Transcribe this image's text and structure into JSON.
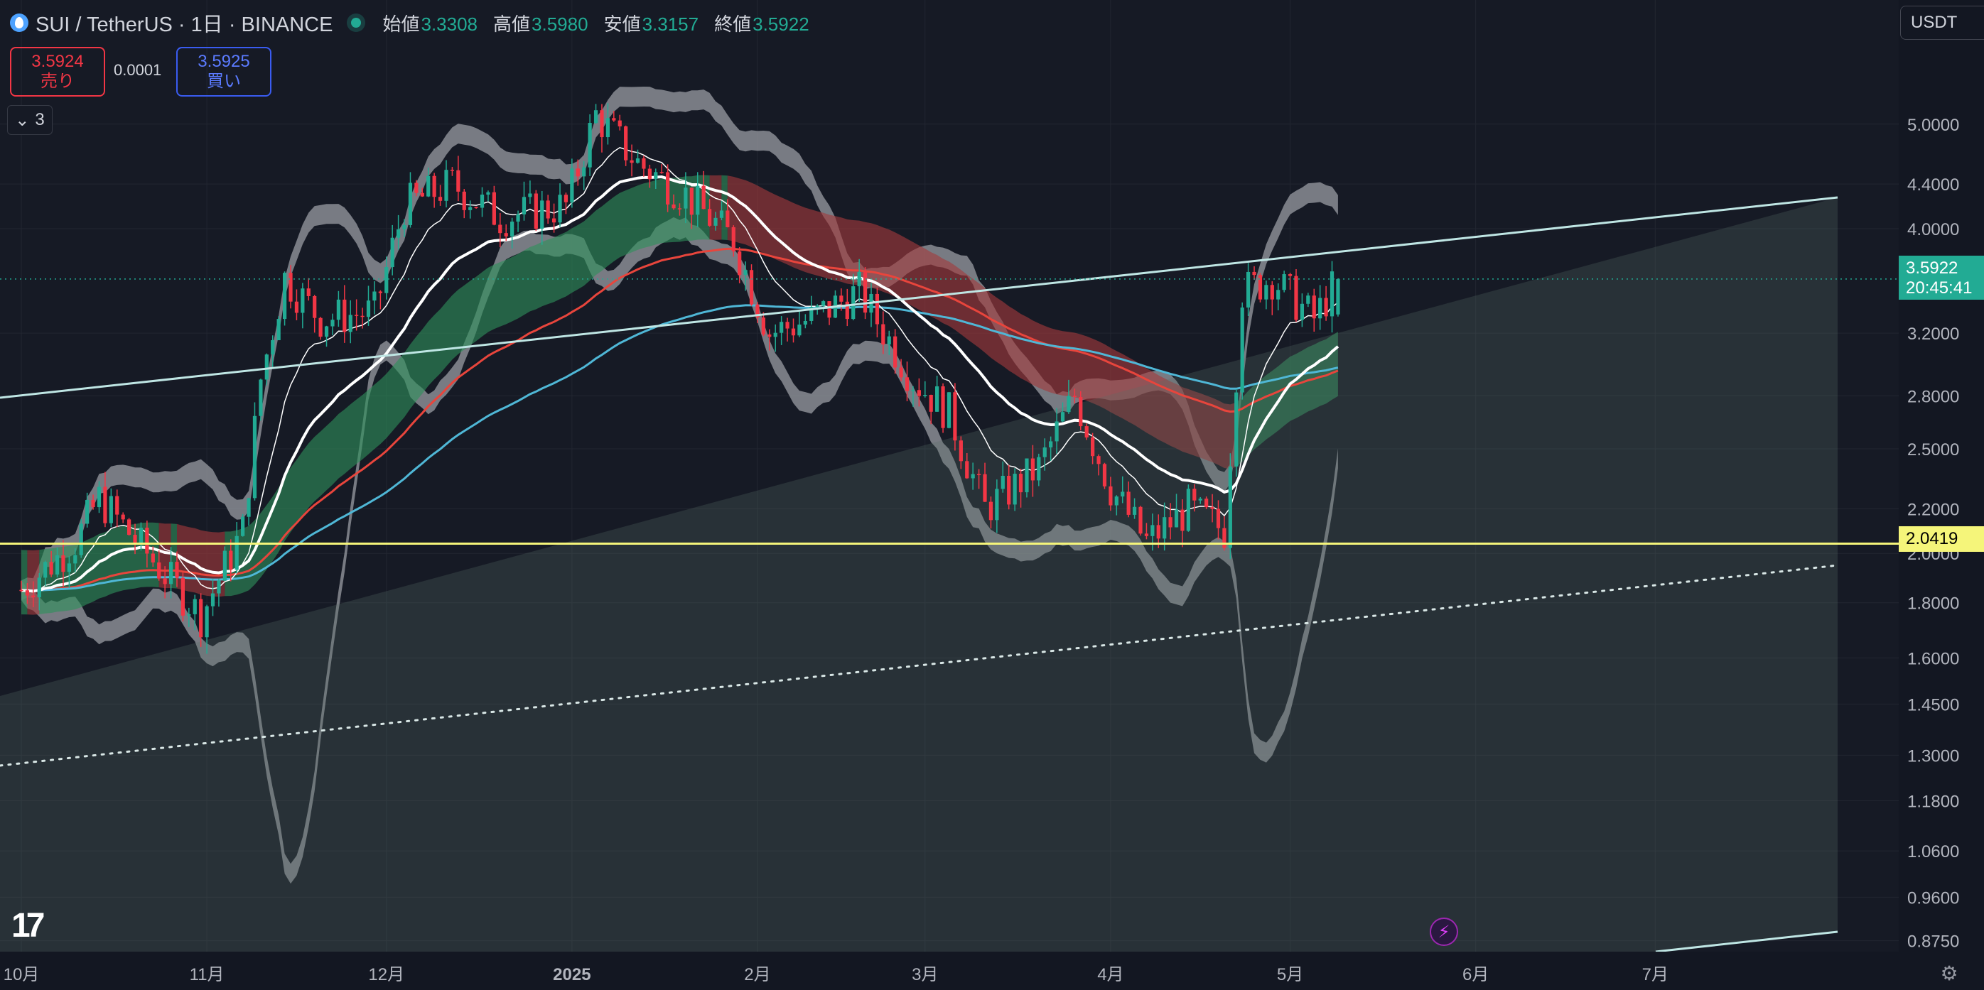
{
  "header": {
    "symbol": "SUI / TetherUS · 1日 · BINANCE",
    "ohlc": [
      {
        "label": "始値",
        "value": "3.3308"
      },
      {
        "label": "高値",
        "value": "3.5980"
      },
      {
        "label": "安値",
        "value": "3.3157"
      },
      {
        "label": "終値",
        "value": "3.5922"
      }
    ]
  },
  "trade": {
    "sell_price": "3.5924",
    "sell_label": "売り",
    "spread": "0.0001",
    "buy_price": "3.5925",
    "buy_label": "買い"
  },
  "indicators_toggle": {
    "count": "3"
  },
  "currency": "USDT",
  "price_axis": {
    "ticks": [
      "5.0000",
      "4.4000",
      "4.0000",
      "3.2000",
      "2.8000",
      "2.5000",
      "2.2000",
      "2.0000",
      "1.8000",
      "1.6000",
      "1.4500",
      "1.3000",
      "1.1800",
      "1.0600",
      "0.9600",
      "0.8750"
    ],
    "current_price": "3.5922",
    "countdown": "20:45:41",
    "horizontal_line_price": "2.0419"
  },
  "time_axis": {
    "labels": [
      "10月",
      "11月",
      "12月",
      "2025",
      "2月",
      "3月",
      "4月",
      "5月",
      "6月",
      "7月"
    ]
  },
  "colors": {
    "background": "#161a25",
    "up": "#22ab94",
    "down": "#f23645",
    "ema_red": "#e8453c",
    "ema_blue": "#4fb7d6",
    "trend_line": "#bfe6e4",
    "horizontal_line": "#f5f57a"
  },
  "chart_data": {
    "type": "candlestick",
    "title": "SUI / TetherUS · 1日 · BINANCE",
    "scale": "log",
    "ylim": [
      0.86,
      5.6
    ],
    "xrange": [
      "2024-10-01",
      "2025-07-31"
    ],
    "last_candle": {
      "open": 3.3308,
      "high": 3.598,
      "low": 3.3157,
      "close": 3.5922
    },
    "close_path_approx": [
      {
        "x": "2024-10-01",
        "close": 1.85
      },
      {
        "x": "2024-10-10",
        "close": 2.05
      },
      {
        "x": "2024-10-14",
        "close": 2.25
      },
      {
        "x": "2024-10-22",
        "close": 2.0
      },
      {
        "x": "2024-10-31",
        "close": 1.75
      },
      {
        "x": "2024-11-07",
        "close": 2.1
      },
      {
        "x": "2024-11-10",
        "close": 2.9
      },
      {
        "x": "2024-11-14",
        "close": 3.6
      },
      {
        "x": "2024-11-20",
        "close": 3.3
      },
      {
        "x": "2024-11-29",
        "close": 3.35
      },
      {
        "x": "2024-12-04",
        "close": 4.2
      },
      {
        "x": "2024-12-12",
        "close": 4.4
      },
      {
        "x": "2024-12-20",
        "close": 4.1
      },
      {
        "x": "2024-12-31",
        "close": 4.2
      },
      {
        "x": "2025-01-05",
        "close": 5.1
      },
      {
        "x": "2025-01-12",
        "close": 4.6
      },
      {
        "x": "2025-01-20",
        "close": 4.3
      },
      {
        "x": "2025-01-28",
        "close": 3.9
      },
      {
        "x": "2025-02-03",
        "close": 3.2
      },
      {
        "x": "2025-02-10",
        "close": 3.3
      },
      {
        "x": "2025-02-18",
        "close": 3.5
      },
      {
        "x": "2025-02-27",
        "close": 2.9
      },
      {
        "x": "2025-03-05",
        "close": 2.7
      },
      {
        "x": "2025-03-11",
        "close": 2.2
      },
      {
        "x": "2025-03-20",
        "close": 2.4
      },
      {
        "x": "2025-03-26",
        "close": 2.8
      },
      {
        "x": "2025-04-01",
        "close": 2.3
      },
      {
        "x": "2025-04-07",
        "close": 2.05
      },
      {
        "x": "2025-04-14",
        "close": 2.2
      },
      {
        "x": "2025-04-20",
        "close": 2.1
      },
      {
        "x": "2025-04-23",
        "close": 3.5
      },
      {
        "x": "2025-04-28",
        "close": 3.6
      },
      {
        "x": "2025-05-05",
        "close": 3.3
      },
      {
        "x": "2025-05-09",
        "close": 3.59
      }
    ],
    "horizontal_line": 2.0419,
    "grid": true
  }
}
